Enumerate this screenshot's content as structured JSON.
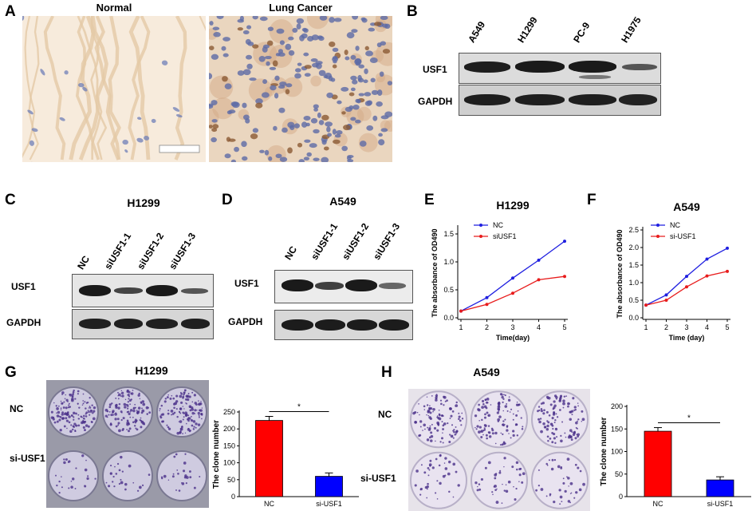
{
  "panels": {
    "A": {
      "letter": "A",
      "titles": [
        "Normal",
        "Lung Cancer"
      ]
    },
    "B": {
      "letter": "B",
      "lanes": [
        "A549",
        "H1299",
        "PC-9",
        "H1975"
      ],
      "rows": [
        "USF1",
        "GAPDH"
      ]
    },
    "C": {
      "letter": "C",
      "title": "H1299",
      "lanes": [
        "NC",
        "siUSF1-1",
        "siUSF1-2",
        "siUSF1-3"
      ],
      "rows": [
        "USF1",
        "GAPDH"
      ]
    },
    "D": {
      "letter": "D",
      "title": "A549",
      "lanes": [
        "NC",
        "siUSF1-1",
        "siUSF1-2",
        "siUSF1-3"
      ],
      "rows": [
        "USF1",
        "GAPDH"
      ]
    },
    "E": {
      "letter": "E"
    },
    "F": {
      "letter": "F"
    },
    "G": {
      "letter": "G",
      "title": "H1299",
      "rows": [
        "NC",
        "si-USF1"
      ]
    },
    "H": {
      "letter": "H",
      "title": "A549",
      "rows": [
        "NC",
        "si-USF1"
      ]
    }
  },
  "colors": {
    "nc_line": "#1f1fe0",
    "si_line": "#e81c1c",
    "nc_bar": "#ff0000",
    "si_bar": "#0000ff"
  },
  "chart_data": [
    {
      "id": "E",
      "type": "line",
      "title": "H1299",
      "xlabel": "Time(day)",
      "ylabel": "The absorbance of OD490",
      "x": [
        1,
        2,
        3,
        4,
        5
      ],
      "xlim": [
        1,
        5
      ],
      "yticks": [
        0.0,
        0.5,
        1.0,
        1.5
      ],
      "ylim": [
        0,
        1.6
      ],
      "series": [
        {
          "name": "NC",
          "values": [
            0.12,
            0.36,
            0.71,
            1.03,
            1.37
          ]
        },
        {
          "name": "siUSF1",
          "values": [
            0.12,
            0.24,
            0.44,
            0.68,
            0.74
          ]
        }
      ],
      "legend": "top-left"
    },
    {
      "id": "F",
      "type": "line",
      "title": "A549",
      "xlabel": "Time (day)",
      "ylabel": "The absorbance of OD490",
      "x": [
        1,
        2,
        3,
        4,
        5
      ],
      "xlim": [
        1,
        5
      ],
      "yticks": [
        0.0,
        0.5,
        1.0,
        1.5,
        2.0,
        2.5
      ],
      "ylim": [
        0,
        2.5
      ],
      "series": [
        {
          "name": "NC",
          "values": [
            0.36,
            0.65,
            1.18,
            1.67,
            1.98
          ]
        },
        {
          "name": "si-USF1",
          "values": [
            0.36,
            0.5,
            0.88,
            1.19,
            1.32
          ]
        }
      ],
      "legend": "top-left"
    },
    {
      "id": "G-bar",
      "type": "bar",
      "ylabel": "The clone number",
      "categories": [
        "NC",
        "si-USF1"
      ],
      "values": [
        225,
        60
      ],
      "errors": [
        12,
        10
      ],
      "yticks": [
        0,
        50,
        100,
        150,
        200,
        250
      ],
      "ylim": [
        0,
        250
      ],
      "significance": "*"
    },
    {
      "id": "H-bar",
      "type": "bar",
      "ylabel": "The clone number",
      "categories": [
        "NC",
        "si-USF1"
      ],
      "values": [
        145,
        37
      ],
      "errors": [
        8,
        7
      ],
      "yticks": [
        0,
        50,
        100,
        150,
        200
      ],
      "ylim": [
        0,
        200
      ],
      "significance": "*"
    }
  ]
}
